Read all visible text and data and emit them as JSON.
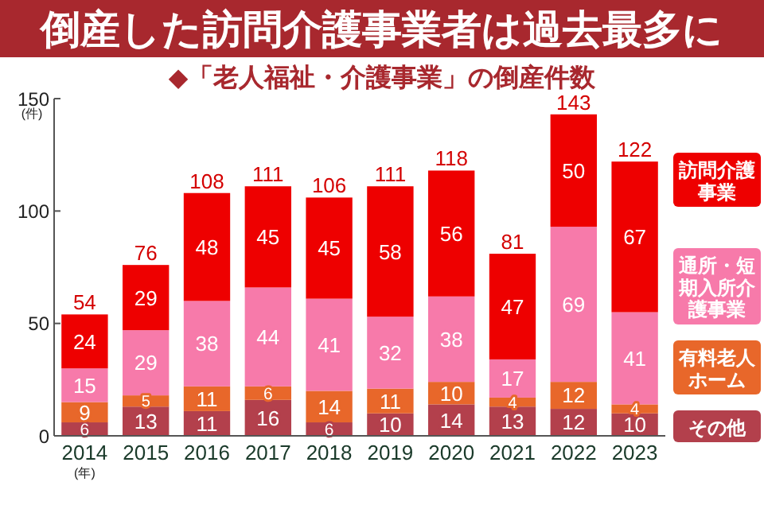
{
  "chart_data": {
    "type": "bar",
    "title": "倒産した訪問介護事業者は過去最多に",
    "subtitle": "◆「老人福祉・介護事業」の倒産件数",
    "xlabel": "(年)",
    "ylabel": "(件)",
    "categories": [
      "2014",
      "2015",
      "2016",
      "2017",
      "2018",
      "2019",
      "2020",
      "2021",
      "2022",
      "2023"
    ],
    "stacked": true,
    "series": [
      {
        "name": "その他",
        "color": "#b3404c",
        "values": [
          6,
          13,
          11,
          16,
          6,
          10,
          14,
          13,
          12,
          10
        ]
      },
      {
        "name": "有料老人ホーム",
        "color": "#e8672a",
        "values": [
          9,
          5,
          11,
          6,
          14,
          11,
          10,
          4,
          12,
          4
        ]
      },
      {
        "name": "通所・短期入所介護事業",
        "color": "#f77aaa",
        "values": [
          15,
          29,
          38,
          44,
          41,
          32,
          38,
          17,
          69,
          41
        ]
      },
      {
        "name": "訪問介護事業",
        "color": "#ee0000",
        "values": [
          24,
          29,
          48,
          45,
          45,
          58,
          56,
          47,
          50,
          67
        ]
      }
    ],
    "totals": [
      "54",
      "76",
      "108",
      "111",
      "106",
      "111",
      "118",
      "81",
      "143",
      "122"
    ],
    "ylim": [
      0,
      150
    ],
    "yticks": [
      0,
      50,
      100,
      150
    ],
    "data_labels": true,
    "legend": "right",
    "grid": false
  }
}
